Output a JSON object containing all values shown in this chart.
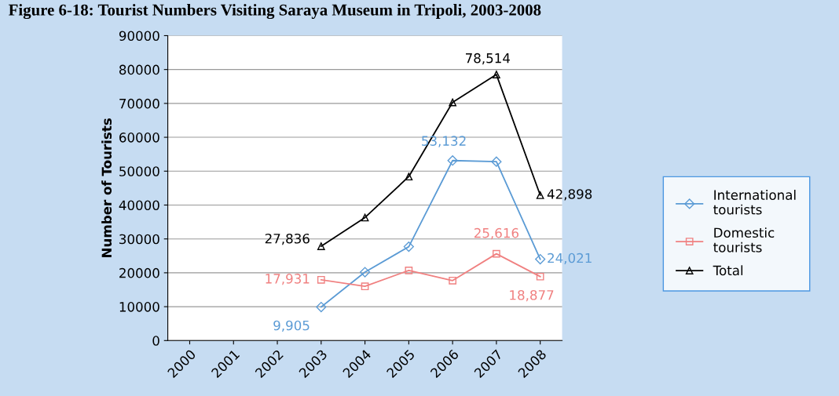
{
  "chart_data": {
    "type": "line",
    "title": "Figure 6-18: Tourist Numbers Visiting Saraya Museum in Tripoli, 2003-2008",
    "ylabel": "Number of Tourists",
    "categories": [
      "2000",
      "2001",
      "2002",
      "2003",
      "2004",
      "2005",
      "2006",
      "2007",
      "2008"
    ],
    "series": [
      {
        "name": "International tourists",
        "color": "#5b9bd5",
        "marker": "diamond",
        "values": [
          null,
          null,
          null,
          9905,
          20200,
          27700,
          53132,
          52800,
          24021
        ],
        "value_labels": [
          null,
          null,
          null,
          "9,905",
          null,
          null,
          "53,132",
          null,
          "24,021"
        ]
      },
      {
        "name": "Domestic tourists",
        "color": "#f08080",
        "marker": "square",
        "values": [
          null,
          null,
          null,
          17931,
          16000,
          20700,
          17700,
          25616,
          18877
        ],
        "value_labels": [
          null,
          null,
          null,
          "17,931",
          null,
          null,
          null,
          "25,616",
          "18,877"
        ]
      },
      {
        "name": "Total",
        "color": "#000000",
        "marker": "triangle",
        "values": [
          null,
          null,
          null,
          27836,
          36300,
          48400,
          70300,
          78514,
          42898
        ],
        "value_labels": [
          null,
          null,
          null,
          "27,836",
          null,
          null,
          null,
          "78,514",
          "42,898"
        ]
      }
    ],
    "ylim": [
      0,
      90000
    ],
    "yticks": [
      0,
      10000,
      20000,
      30000,
      40000,
      50000,
      60000,
      70000,
      80000,
      90000
    ],
    "grid": "y",
    "legend": "right"
  }
}
